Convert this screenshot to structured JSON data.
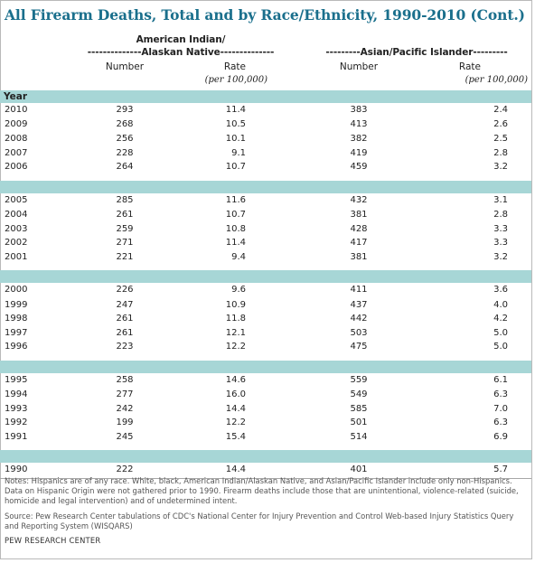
{
  "title": "All Firearm Deaths, Total and by Race/Ethnicity, 1990-2010 (Cont.)",
  "groups": {
    "american_indian": {
      "line1": "American Indian/",
      "line2": "--------------Alaskan Native--------------"
    },
    "asian": {
      "line": "---------Asian/Pacific Islander---------"
    }
  },
  "columns": {
    "number": "Number",
    "rate": "Rate",
    "rate_sub": "(per 100,000)"
  },
  "year_label": "Year",
  "blocks": [
    [
      {
        "year": "2010",
        "ai_number": "293",
        "ai_rate": "11.4",
        "api_number": "383",
        "api_rate": "2.4"
      },
      {
        "year": "2009",
        "ai_number": "268",
        "ai_rate": "10.5",
        "api_number": "413",
        "api_rate": "2.6"
      },
      {
        "year": "2008",
        "ai_number": "256",
        "ai_rate": "10.1",
        "api_number": "382",
        "api_rate": "2.5"
      },
      {
        "year": "2007",
        "ai_number": "228",
        "ai_rate": "9.1",
        "api_number": "419",
        "api_rate": "2.8"
      },
      {
        "year": "2006",
        "ai_number": "264",
        "ai_rate": "10.7",
        "api_number": "459",
        "api_rate": "3.2"
      }
    ],
    [
      {
        "year": "2005",
        "ai_number": "285",
        "ai_rate": "11.6",
        "api_number": "432",
        "api_rate": "3.1"
      },
      {
        "year": "2004",
        "ai_number": "261",
        "ai_rate": "10.7",
        "api_number": "381",
        "api_rate": "2.8"
      },
      {
        "year": "2003",
        "ai_number": "259",
        "ai_rate": "10.8",
        "api_number": "428",
        "api_rate": "3.3"
      },
      {
        "year": "2002",
        "ai_number": "271",
        "ai_rate": "11.4",
        "api_number": "417",
        "api_rate": "3.3"
      },
      {
        "year": "2001",
        "ai_number": "221",
        "ai_rate": "9.4",
        "api_number": "381",
        "api_rate": "3.2"
      }
    ],
    [
      {
        "year": "2000",
        "ai_number": "226",
        "ai_rate": "9.6",
        "api_number": "411",
        "api_rate": "3.6"
      },
      {
        "year": "1999",
        "ai_number": "247",
        "ai_rate": "10.9",
        "api_number": "437",
        "api_rate": "4.0"
      },
      {
        "year": "1998",
        "ai_number": "261",
        "ai_rate": "11.8",
        "api_number": "442",
        "api_rate": "4.2"
      },
      {
        "year": "1997",
        "ai_number": "261",
        "ai_rate": "12.1",
        "api_number": "503",
        "api_rate": "5.0"
      },
      {
        "year": "1996",
        "ai_number": "223",
        "ai_rate": "12.2",
        "api_number": "475",
        "api_rate": "5.0"
      }
    ],
    [
      {
        "year": "1995",
        "ai_number": "258",
        "ai_rate": "14.6",
        "api_number": "559",
        "api_rate": "6.1"
      },
      {
        "year": "1994",
        "ai_number": "277",
        "ai_rate": "16.0",
        "api_number": "549",
        "api_rate": "6.3"
      },
      {
        "year": "1993",
        "ai_number": "242",
        "ai_rate": "14.4",
        "api_number": "585",
        "api_rate": "7.0"
      },
      {
        "year": "1992",
        "ai_number": "199",
        "ai_rate": "12.2",
        "api_number": "501",
        "api_rate": "6.3"
      },
      {
        "year": "1991",
        "ai_number": "245",
        "ai_rate": "15.4",
        "api_number": "514",
        "api_rate": "6.9"
      }
    ],
    [
      {
        "year": "1990",
        "ai_number": "222",
        "ai_rate": "14.4",
        "api_number": "401",
        "api_rate": "5.7"
      }
    ]
  ],
  "notes": "Notes: Hispanics are of any race. White, black, American Indian/Alaskan Native, and Asian/Pacific Islander include only non-Hispanics. Data on Hispanic Origin were not gathered prior to 1990. Firearm deaths include those that are unintentional, violence-related (suicide, homicide and legal intervention) and of undetermined intent.",
  "source": "Source: Pew Research Center tabulations of CDC's National Center for Injury Prevention and Control Web-based Injury Statistics Query and Reporting System (WISQARS)",
  "credit": "PEW RESEARCH CENTER",
  "colors": {
    "title": "#1a6f8c",
    "band": "#a7d6d6",
    "rule": "#a7a7a7"
  }
}
